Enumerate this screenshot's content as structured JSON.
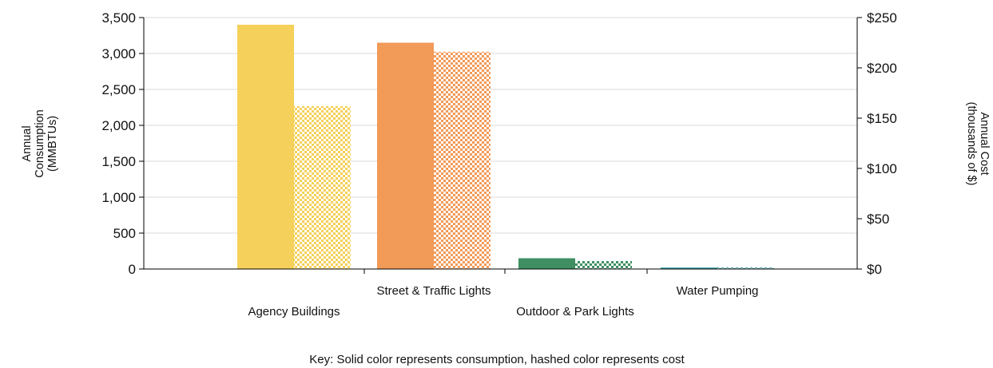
{
  "chart_data": {
    "type": "bar",
    "categories": [
      "Agency Buildings",
      "Street & Traffic Lights",
      "Outdoor & Park Lights",
      "Water Pumping"
    ],
    "series": [
      {
        "axis": "left",
        "style": "solid",
        "values": [
          3400,
          3150,
          150,
          20
        ]
      },
      {
        "axis": "right",
        "style": "hashed",
        "values": [
          162,
          216,
          8,
          1.5
        ]
      }
    ],
    "colors": [
      "#f5d05a",
      "#f29a58",
      "#3f8f62",
      "#2f9a9f"
    ],
    "ylabel_left": [
      "Annual",
      "Consumption",
      "(MMBTUs)"
    ],
    "ylabel_right": [
      "Annual Cost",
      "(thousands of $)"
    ],
    "ylim_left": [
      0,
      3500
    ],
    "ylim_right": [
      0,
      250
    ],
    "left_ticks": [
      {
        "value": 0,
        "label": "0"
      },
      {
        "value": 500,
        "label": "500"
      },
      {
        "value": 1000,
        "label": "1,000"
      },
      {
        "value": 1500,
        "label": "1,500"
      },
      {
        "value": 2000,
        "label": "2,000"
      },
      {
        "value": 2500,
        "label": "2,500"
      },
      {
        "value": 3000,
        "label": "3,000"
      },
      {
        "value": 3500,
        "label": "3,500"
      }
    ],
    "right_ticks": [
      {
        "value": 0,
        "label": "$0"
      },
      {
        "value": 50,
        "label": "$50"
      },
      {
        "value": 100,
        "label": "$100"
      },
      {
        "value": 150,
        "label": "$150"
      },
      {
        "value": 200,
        "label": "$200"
      },
      {
        "value": 250,
        "label": "$250"
      }
    ],
    "grid": true,
    "key_text": "Key: Solid color represents consumption, hashed color represents cost"
  }
}
